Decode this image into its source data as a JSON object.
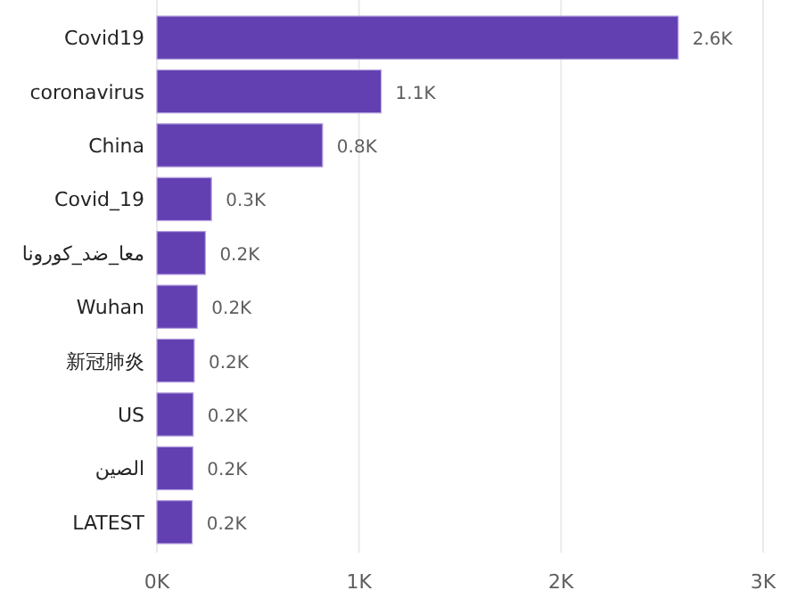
{
  "chart_data": {
    "type": "bar",
    "orientation": "horizontal",
    "categories": [
      "Covid19",
      "coronavirus",
      "China",
      "Covid_19",
      "معا_ضد_كورونا",
      "Wuhan",
      "新冠肺炎",
      "US",
      "الصين",
      "LATEST"
    ],
    "values": [
      2580,
      1110,
      820,
      270,
      240,
      200,
      185,
      180,
      178,
      175
    ],
    "value_labels": [
      "2.6K",
      "1.1K",
      "0.8K",
      "0.3K",
      "0.2K",
      "0.2K",
      "0.2K",
      "0.2K",
      "0.2K",
      "0.2K"
    ],
    "color": "#6340b2",
    "xlim": [
      0,
      3000
    ],
    "xticks": [
      {
        "value": 0,
        "label": "0K"
      },
      {
        "value": 1000,
        "label": "1K"
      },
      {
        "value": 2000,
        "label": "2K"
      },
      {
        "value": 3000,
        "label": "3K"
      }
    ],
    "grid": "x"
  }
}
